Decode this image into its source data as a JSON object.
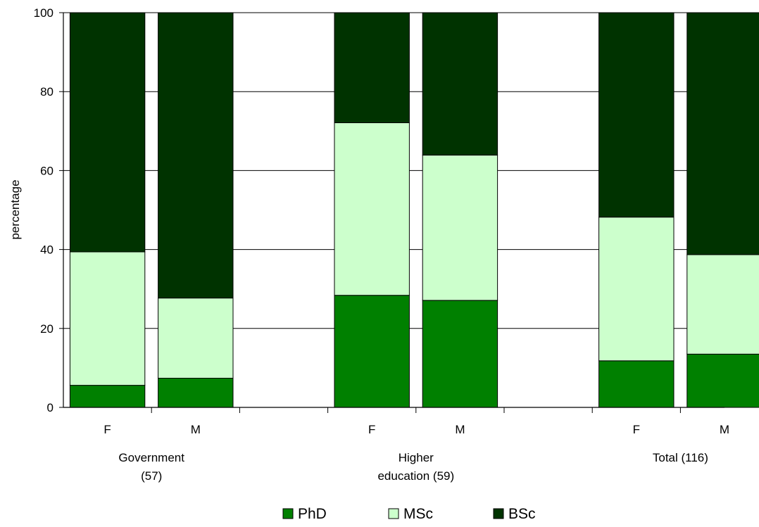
{
  "chart_data": {
    "type": "bar",
    "stacked": true,
    "ylabel": "percentage",
    "ylim": [
      0,
      100
    ],
    "yticks": [
      0,
      20,
      40,
      60,
      80,
      100
    ],
    "grid": true,
    "legend_position": "bottom",
    "groups": [
      {
        "label_lines": [
          "Government",
          "(57)"
        ],
        "categories": [
          "F",
          "M"
        ]
      },
      {
        "label_lines": [
          "Higher",
          "education (59)"
        ],
        "categories": [
          "F",
          "M"
        ]
      },
      {
        "label_lines": [
          "Total (116)"
        ],
        "categories": [
          "F",
          "M"
        ]
      }
    ],
    "categories": [
      "F",
      "M",
      "F",
      "M",
      "F",
      "M"
    ],
    "series": [
      {
        "name": "PhD",
        "color": "#008000",
        "values": [
          5.6,
          7.4,
          28.4,
          27.1,
          11.8,
          13.5
        ]
      },
      {
        "name": "MSc",
        "color": "#ccffcc",
        "values": [
          33.8,
          20.3,
          43.7,
          36.8,
          36.4,
          25.2
        ]
      },
      {
        "name": "BSc",
        "color": "#003300",
        "values": [
          60.6,
          72.3,
          27.9,
          36.1,
          51.8,
          61.3
        ]
      }
    ]
  }
}
